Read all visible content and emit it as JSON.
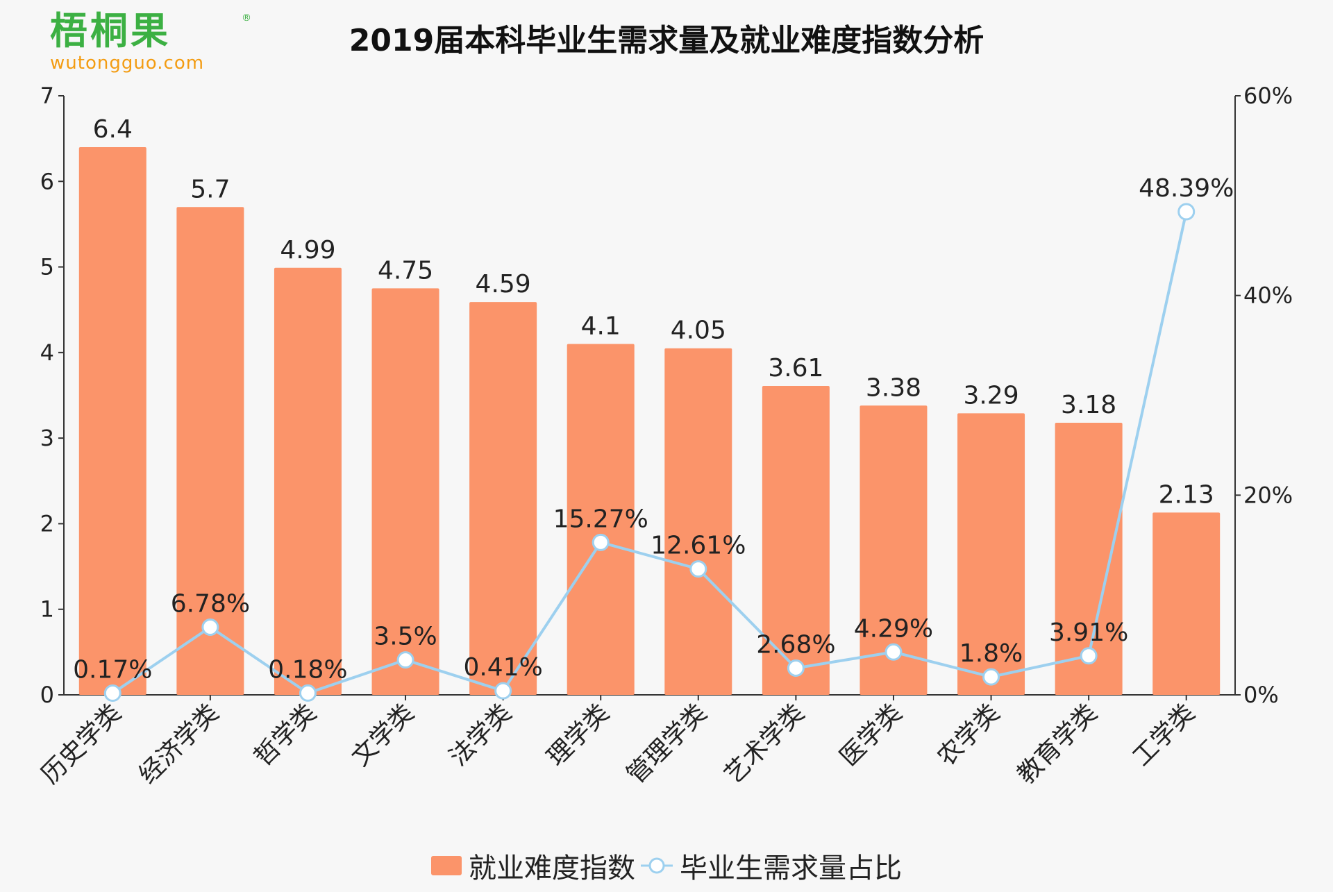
{
  "logo": {
    "main": "梧桐果",
    "reg": "®",
    "sub": "wutongguo.com"
  },
  "colors": {
    "bar": "#fb946a",
    "line": "#9dd0ef",
    "logo_green": "#3cb043",
    "logo_orange": "#f39c12"
  },
  "chart_data": {
    "type": "bar+line",
    "title": "2019届本科毕业生需求量及就业难度指数分析",
    "categories": [
      "历史学类",
      "经济学类",
      "哲学类",
      "文学类",
      "法学类",
      "理学类",
      "管理学类",
      "艺术学类",
      "医学类",
      "农学类",
      "教育学类",
      "工学类"
    ],
    "series": [
      {
        "name": "就业难度指数",
        "type": "bar",
        "axis": "left",
        "values": [
          6.4,
          5.7,
          4.99,
          4.75,
          4.59,
          4.1,
          4.05,
          3.61,
          3.38,
          3.29,
          3.18,
          2.13
        ],
        "labels": [
          "6.4",
          "5.7",
          "4.99",
          "4.75",
          "4.59",
          "4.1",
          "4.05",
          "3.61",
          "3.38",
          "3.29",
          "3.18",
          "2.13"
        ]
      },
      {
        "name": "毕业生需求量占比",
        "type": "line",
        "axis": "right",
        "values": [
          0.17,
          6.78,
          0.18,
          3.5,
          0.41,
          15.27,
          12.61,
          2.68,
          4.29,
          1.8,
          3.91,
          48.39
        ],
        "labels": [
          "0.17%",
          "6.78%",
          "0.18%",
          "3.5%",
          "0.41%",
          "15.27%",
          "12.61%",
          "2.68%",
          "4.29%",
          "1.8%",
          "3.91%",
          "48.39%"
        ]
      }
    ],
    "y_left": {
      "min": 0,
      "max": 7,
      "ticks": [
        "0",
        "1",
        "2",
        "3",
        "4",
        "5",
        "6",
        "7"
      ]
    },
    "y_right": {
      "min": 0,
      "max": 60,
      "ticks": [
        "0%",
        "20%",
        "40%",
        "60%"
      ]
    },
    "grid": false,
    "legend_position": "bottom-center"
  }
}
